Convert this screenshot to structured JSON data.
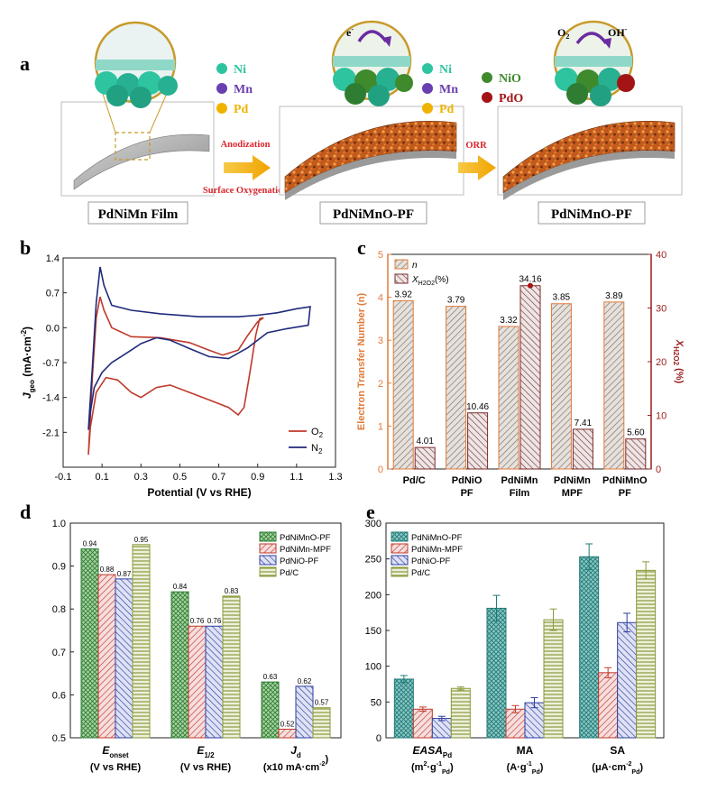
{
  "panel_a": {
    "label": "a",
    "film_label": "PdNiMn Film",
    "pf_label_1": "PdNiMnO-PF",
    "pf_label_2": "PdNiMnO-PF",
    "step1_line1": "Anodization",
    "step1_line2": "Surface Oxygenation",
    "step2": "ORR",
    "electron": "e",
    "electron_sup": "-",
    "reaction_o2": "O",
    "reaction_o2_sub": "2",
    "reaction_oh": "OH",
    "reaction_oh_sup": "-",
    "legend1": [
      {
        "label": "Ni",
        "color": "#2ec4a0"
      },
      {
        "label": "Mn",
        "color": "#6a3fb0"
      },
      {
        "label": "Pd",
        "color": "#f0b400"
      }
    ],
    "legend2": [
      {
        "label": "Ni",
        "color": "#2ec4a0"
      },
      {
        "label": "Mn",
        "color": "#6a3fb0"
      },
      {
        "label": "Pd",
        "color": "#f0b400"
      }
    ],
    "legend3": [
      {
        "label": "NiO",
        "color": "#3f8a2c"
      },
      {
        "label": "PdO",
        "color": "#a31414"
      }
    ]
  },
  "chart_data": [
    {
      "panel": "b",
      "type": "line",
      "xlabel": "Potential (V vs RHE)",
      "ylabel": "J",
      "ylabel_sub": "geo",
      "ylabel_unit": " (mA·cm",
      "ylabel_unit_sup": "-2",
      "ylabel_close": ")",
      "xlim": [
        -0.1,
        1.3
      ],
      "ylim": [
        -2.8,
        1.4
      ],
      "xticks": [
        "-0.1",
        "0.1",
        "0.3",
        "0.5",
        "0.7",
        "0.9",
        "1.1",
        "1.3"
      ],
      "yticks": [
        "1.4",
        "0.7",
        "0.0",
        "-0.7",
        "-1.4",
        "-2.1"
      ],
      "series": [
        {
          "name": "O",
          "sub": "2",
          "color": "#c0392b",
          "forward": [
            [
              0.03,
              -2.55
            ],
            [
              0.05,
              -1.0
            ],
            [
              0.07,
              0.2
            ],
            [
              0.09,
              0.62
            ],
            [
              0.11,
              0.35
            ],
            [
              0.15,
              0.0
            ],
            [
              0.25,
              -0.18
            ],
            [
              0.4,
              -0.2
            ],
            [
              0.55,
              -0.3
            ],
            [
              0.65,
              -0.45
            ],
            [
              0.72,
              -0.55
            ],
            [
              0.8,
              -0.45
            ],
            [
              0.85,
              -0.15
            ],
            [
              0.9,
              0.12
            ],
            [
              0.93,
              0.2
            ]
          ],
          "backward": [
            [
              0.93,
              0.2
            ],
            [
              0.91,
              0.18
            ],
            [
              0.89,
              -0.15
            ],
            [
              0.86,
              -0.9
            ],
            [
              0.83,
              -1.6
            ],
            [
              0.8,
              -1.75
            ],
            [
              0.75,
              -1.6
            ],
            [
              0.65,
              -1.45
            ],
            [
              0.55,
              -1.3
            ],
            [
              0.45,
              -1.15
            ],
            [
              0.38,
              -1.2
            ],
            [
              0.3,
              -1.4
            ],
            [
              0.25,
              -1.3
            ],
            [
              0.18,
              -1.05
            ],
            [
              0.12,
              -1.0
            ],
            [
              0.07,
              -1.3
            ],
            [
              0.04,
              -2.0
            ],
            [
              0.03,
              -2.55
            ]
          ]
        },
        {
          "name": "N",
          "sub": "2",
          "color": "#1f2a7a",
          "forward": [
            [
              0.03,
              -2.05
            ],
            [
              0.05,
              -0.8
            ],
            [
              0.07,
              0.5
            ],
            [
              0.09,
              1.22
            ],
            [
              0.11,
              0.85
            ],
            [
              0.15,
              0.45
            ],
            [
              0.25,
              0.35
            ],
            [
              0.4,
              0.28
            ],
            [
              0.6,
              0.22
            ],
            [
              0.8,
              0.22
            ],
            [
              0.9,
              0.25
            ],
            [
              1.0,
              0.3
            ],
            [
              1.1,
              0.38
            ],
            [
              1.17,
              0.42
            ]
          ],
          "backward": [
            [
              1.17,
              0.42
            ],
            [
              1.16,
              0.05
            ],
            [
              1.05,
              -0.02
            ],
            [
              0.95,
              -0.1
            ],
            [
              0.85,
              -0.4
            ],
            [
              0.75,
              -0.62
            ],
            [
              0.65,
              -0.58
            ],
            [
              0.55,
              -0.42
            ],
            [
              0.45,
              -0.25
            ],
            [
              0.38,
              -0.2
            ],
            [
              0.3,
              -0.32
            ],
            [
              0.25,
              -0.45
            ],
            [
              0.15,
              -0.7
            ],
            [
              0.1,
              -0.9
            ],
            [
              0.06,
              -1.2
            ],
            [
              0.04,
              -1.7
            ],
            [
              0.03,
              -2.05
            ]
          ]
        }
      ]
    },
    {
      "panel": "c",
      "type": "bar",
      "ylabel_left": "Electron Transfer Number (n)",
      "ylabel_right": "X",
      "ylabel_right_sub": "H2O2",
      "ylabel_right_unit": " (%)",
      "ylim_left": [
        0,
        5
      ],
      "ylim_right": [
        0,
        40
      ],
      "yticks_left": [
        "0",
        "1",
        "2",
        "3",
        "4",
        "5"
      ],
      "yticks_right": [
        "0",
        "10",
        "20",
        "30",
        "40"
      ],
      "categories": [
        [
          "Pd/C"
        ],
        [
          "PdNiO",
          "PF"
        ],
        [
          "PdNiMn",
          "Film"
        ],
        [
          "PdNiMn",
          "MPF"
        ],
        [
          "PdNiMnO",
          "PF"
        ]
      ],
      "series": [
        {
          "name": "n",
          "values": [
            3.92,
            3.79,
            3.32,
            3.85,
            3.89
          ],
          "labels": [
            "3.92",
            "3.79",
            "3.32",
            "3.85",
            "3.89"
          ]
        },
        {
          "name": "X",
          "name_sub": "H2O2",
          "name_unit": "(%)",
          "values": [
            4.01,
            10.46,
            34.16,
            7.41,
            5.6
          ],
          "labels": [
            "4.01",
            "10.46",
            "34.16",
            "7.41",
            "5.60"
          ]
        }
      ],
      "left_axis_color": "#e07b39",
      "right_axis_color": "#9b1c1c"
    },
    {
      "panel": "d",
      "type": "bar",
      "ylim": [
        0.5,
        1.0
      ],
      "yticks": [
        "0.5",
        "0.6",
        "0.7",
        "0.8",
        "0.9",
        "1.0"
      ],
      "groups": [
        {
          "name": "E",
          "sub": "onset",
          "unit": "(V vs RHE)"
        },
        {
          "name": "E",
          "sub": "1/2",
          "unit": "(V vs RHE)"
        },
        {
          "name": "J",
          "sub": "d",
          "unit": "(x10 mA·cm",
          "unit_sup": "-2",
          "unit_close": ")"
        }
      ],
      "series": [
        {
          "name": "PdNiMnO-PF",
          "color": "#2e7d32",
          "values": [
            0.94,
            0.84,
            0.63
          ],
          "labels": [
            "0.94",
            "0.84",
            "0.63"
          ]
        },
        {
          "name": "PdNiMn-MPF",
          "color": "#c0392b",
          "values": [
            0.88,
            0.76,
            0.52
          ],
          "labels": [
            "0.88",
            "0.76",
            "0.52"
          ]
        },
        {
          "name": "PdNiO-PF",
          "color": "#2c3e9e",
          "values": [
            0.87,
            0.76,
            0.62
          ],
          "labels": [
            "0.87",
            "0.76",
            "0.62"
          ]
        },
        {
          "name": "Pd/C",
          "color": "#8a9a3b",
          "values": [
            0.95,
            0.83,
            0.57
          ],
          "labels": [
            "0.95",
            "0.83",
            "0.57"
          ]
        }
      ]
    },
    {
      "panel": "e",
      "type": "bar",
      "ylim": [
        0,
        300
      ],
      "yticks": [
        "0",
        "50",
        "100",
        "150",
        "200",
        "250",
        "300"
      ],
      "groups": [
        {
          "name": "EASA",
          "sub": "Pd",
          "unit": "(m",
          "unit_sup": "2",
          "unit_mid": "·g",
          "unit_sup2": "-1",
          "unit_sub": "Pd",
          "unit_close": ")"
        },
        {
          "name": "MA",
          "sub": "",
          "unit": "(A·g",
          "unit_sup": "-1",
          "unit_mid": "",
          "unit_sup2": "",
          "unit_sub": "Pd",
          "unit_close": ")"
        },
        {
          "name": "SA",
          "sub": "",
          "unit": "(μA·cm",
          "unit_sup": "-2",
          "unit_mid": "",
          "unit_sup2": "",
          "unit_sub": "Pd",
          "unit_close": ")"
        }
      ],
      "series": [
        {
          "name": "PdNiMnO-PF",
          "color": "#1f7a78",
          "values": [
            82,
            181,
            253
          ],
          "errors": [
            5,
            18,
            18
          ]
        },
        {
          "name": "PdNiMn-MPF",
          "color": "#c0392b",
          "values": [
            40,
            40,
            91
          ],
          "errors": [
            3,
            5,
            7
          ]
        },
        {
          "name": "PdNiO-PF",
          "color": "#2c3e9e",
          "values": [
            27,
            49,
            161
          ],
          "errors": [
            3,
            7,
            13
          ]
        },
        {
          "name": "Pd/C",
          "color": "#8a9a3b",
          "values": [
            69,
            165,
            234
          ],
          "errors": [
            2,
            15,
            12
          ]
        }
      ]
    }
  ]
}
